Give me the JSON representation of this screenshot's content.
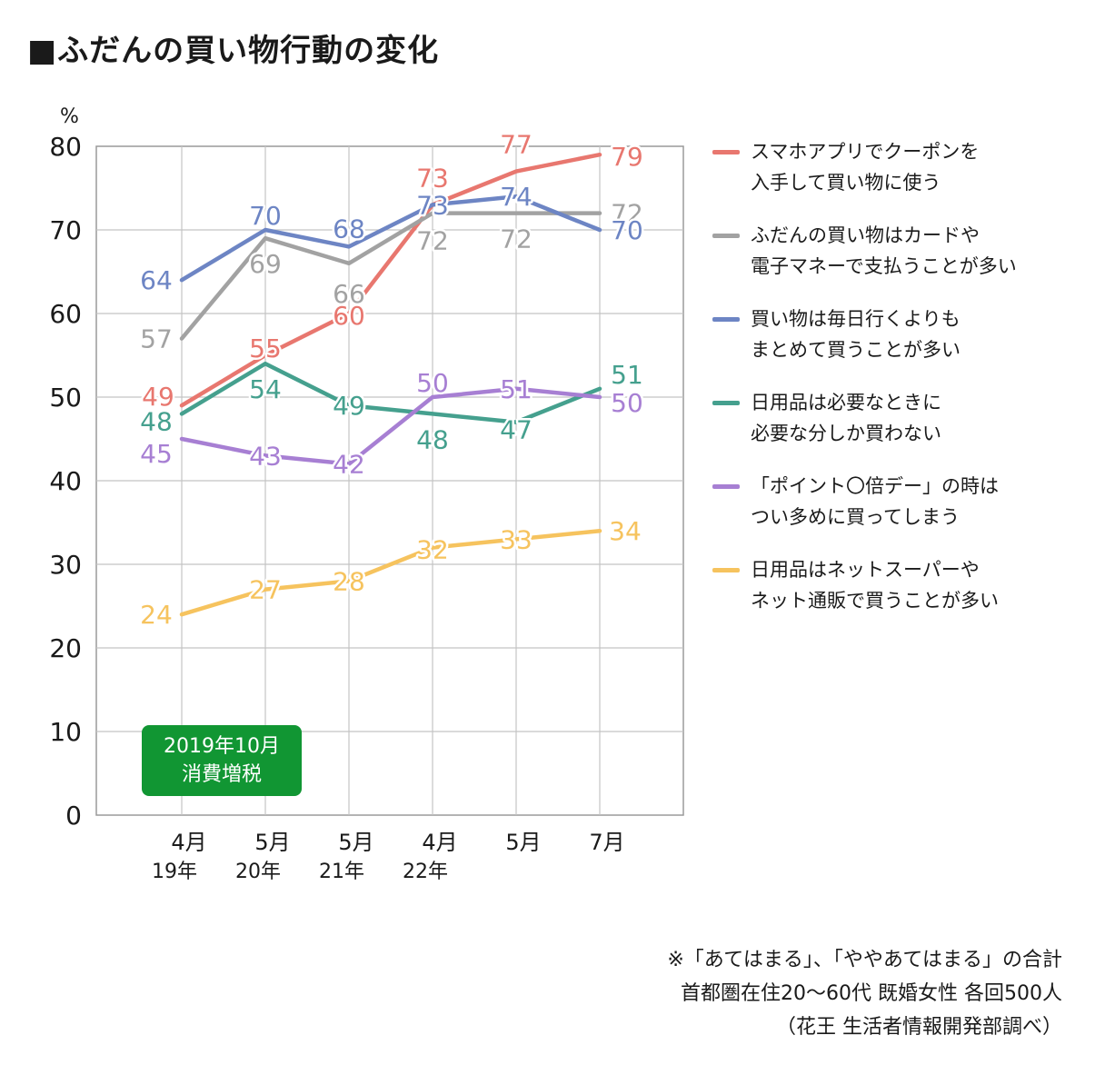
{
  "title": "■ふだんの買い物行動の変化",
  "badge": {
    "line1": "2019年10月",
    "line2": "消費増税"
  },
  "notes": [
    "※「あてはまる」、「ややあてはまる」の合計",
    "首都圏在住20〜60代 既婚女性 各回500人",
    "（花王 生活者情報開発部調べ）"
  ],
  "chart_data": {
    "type": "line",
    "unit": "%",
    "ylim": [
      0,
      80
    ],
    "yticks": [
      0,
      10,
      20,
      30,
      40,
      50,
      60,
      70,
      80
    ],
    "grid": true,
    "legend_position": "right",
    "categories": [
      {
        "month": "4月",
        "year": "19年"
      },
      {
        "month": "5月",
        "year": "20年"
      },
      {
        "month": "5月",
        "year": "21年"
      },
      {
        "month": "4月",
        "year": "22年"
      },
      {
        "month": "5月",
        "year": ""
      },
      {
        "month": "7月",
        "year": ""
      }
    ],
    "series": [
      {
        "name_lines": [
          "スマホアプリでクーポンを",
          "入手して買い物に使う"
        ],
        "color": "#e8776f",
        "values": [
          49,
          55,
          60,
          73,
          77,
          79
        ]
      },
      {
        "name_lines": [
          "ふだんの買い物はカードや",
          "電子マネーで支払うことが多い"
        ],
        "color": "#a2a2a2",
        "values": [
          57,
          69,
          66,
          72,
          72,
          72
        ]
      },
      {
        "name_lines": [
          "買い物は毎日行くよりも",
          "まとめて買うことが多い"
        ],
        "color": "#6d85c4",
        "values": [
          64,
          70,
          68,
          73,
          74,
          70
        ]
      },
      {
        "name_lines": [
          "日用品は必要なときに",
          "必要な分しか買わない"
        ],
        "color": "#45a08e",
        "values": [
          48,
          54,
          49,
          48,
          47,
          51
        ]
      },
      {
        "name_lines": [
          "「ポイント〇倍デー」の時は",
          "つい多めに買ってしまう"
        ],
        "color": "#a77fd3",
        "values": [
          45,
          43,
          42,
          50,
          51,
          50
        ]
      },
      {
        "name_lines": [
          "日用品はネットスーパーや",
          "ネット通販で買うことが多い"
        ],
        "color": "#f6c35e",
        "values": [
          24,
          27,
          28,
          32,
          33,
          34
        ]
      }
    ]
  }
}
